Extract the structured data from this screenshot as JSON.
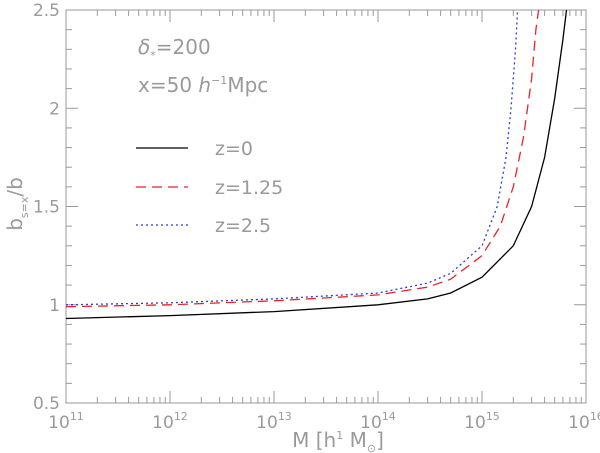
{
  "chart_data": {
    "type": "line",
    "xscale": "log",
    "xlim": [
      100000000000.0,
      1e+16
    ],
    "ylim": [
      0.5,
      2.5
    ],
    "x_ticks": [
      {
        "base": "10",
        "exp": "11"
      },
      {
        "base": "10",
        "exp": "12"
      },
      {
        "base": "10",
        "exp": "13"
      },
      {
        "base": "10",
        "exp": "14"
      },
      {
        "base": "10",
        "exp": "15"
      },
      {
        "base": "10",
        "exp": "16"
      }
    ],
    "y_ticks": [
      "0.5",
      "1",
      "1.5",
      "2",
      "2.5"
    ],
    "xlabel": {
      "prefix": "M  [h",
      "sup": "1",
      "suffix": " M",
      "sub": "⊙",
      "close": "]"
    },
    "ylabel": {
      "main": "b",
      "sub": "s=x",
      "tail": "/b"
    },
    "annotations": {
      "delta": {
        "symbol": "δ",
        "sub": "*",
        "value": "=200"
      },
      "x": {
        "prefix": "x=50 ",
        "h": "h",
        "exp": "−1",
        "suffix": "Mpc"
      }
    },
    "legend_position": "top-left",
    "series": [
      {
        "name": "z=0",
        "color": "#000000",
        "style": "solid",
        "x": [
          100000000000.0,
          1000000000000.0,
          10000000000000.0,
          100000000000000.0,
          300000000000000.0,
          500000000000000.0,
          1000000000000000.0,
          2000000000000000.0,
          3000000000000000.0,
          4000000000000000.0,
          5000000000000000.0,
          6000000000000000.0,
          6500000000000000.0
        ],
        "y": [
          0.93,
          0.945,
          0.965,
          1.0,
          1.03,
          1.06,
          1.14,
          1.3,
          1.5,
          1.75,
          2.05,
          2.35,
          2.5
        ]
      },
      {
        "name": "z=1.25",
        "color": "#e8232a",
        "style": "dashed",
        "x": [
          100000000000.0,
          1000000000000.0,
          10000000000000.0,
          100000000000000.0,
          300000000000000.0,
          500000000000000.0,
          1000000000000000.0,
          1500000000000000.0,
          2000000000000000.0,
          2500000000000000.0,
          3000000000000000.0,
          3300000000000000.0,
          3500000000000000.0
        ],
        "y": [
          0.99,
          1.0,
          1.02,
          1.05,
          1.09,
          1.13,
          1.25,
          1.4,
          1.6,
          1.85,
          2.15,
          2.4,
          2.5
        ]
      },
      {
        "name": "z=2.5",
        "color": "#2b3bd6",
        "style": "dotted",
        "x": [
          100000000000.0,
          1000000000000.0,
          10000000000000.0,
          100000000000000.0,
          300000000000000.0,
          500000000000000.0,
          1000000000000000.0,
          1400000000000000.0,
          1700000000000000.0,
          1900000000000000.0,
          2100000000000000.0,
          2200000000000000.0
        ],
        "y": [
          1.0,
          1.01,
          1.03,
          1.06,
          1.11,
          1.16,
          1.3,
          1.5,
          1.75,
          2.0,
          2.3,
          2.5
        ]
      }
    ]
  }
}
